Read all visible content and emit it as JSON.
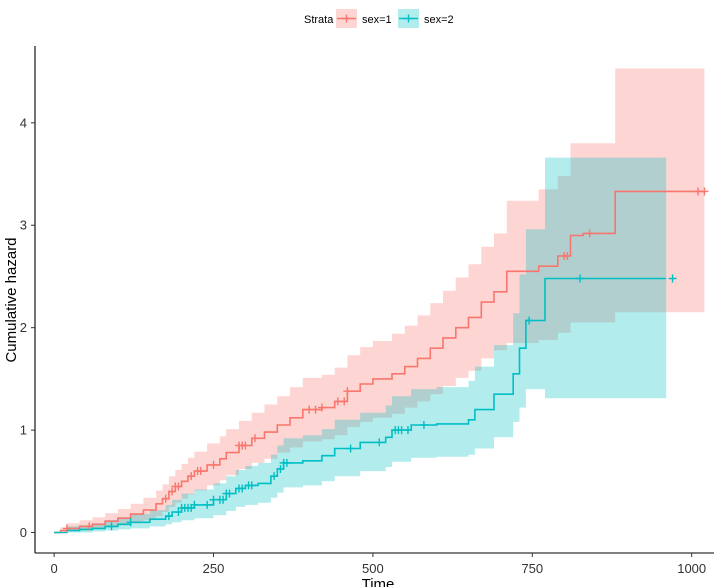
{
  "chart_data": {
    "type": "line",
    "title": "",
    "xlabel": "Time",
    "ylabel": "Cumulative hazard",
    "xlim": [
      -30,
      1035
    ],
    "ylim": [
      -0.2,
      4.75
    ],
    "x_ticks": [
      0,
      250,
      500,
      750,
      1000
    ],
    "y_ticks": [
      0,
      1,
      2,
      3,
      4
    ],
    "x_tick_labels": [
      "0",
      "250",
      "500",
      "750",
      "1000"
    ],
    "y_tick_labels": [
      "0",
      "1",
      "2",
      "3",
      "4"
    ],
    "grid": false,
    "legend": {
      "title": "Strata",
      "position": "top"
    },
    "series": [
      {
        "name": "sex=1",
        "color": "#F8766D",
        "steps": [
          [
            0,
            0.0
          ],
          [
            10,
            0.02
          ],
          [
            20,
            0.04
          ],
          [
            40,
            0.06
          ],
          [
            60,
            0.08
          ],
          [
            80,
            0.11
          ],
          [
            100,
            0.14
          ],
          [
            120,
            0.18
          ],
          [
            140,
            0.22
          ],
          [
            160,
            0.28
          ],
          [
            170,
            0.33
          ],
          [
            180,
            0.4
          ],
          [
            190,
            0.45
          ],
          [
            200,
            0.5
          ],
          [
            210,
            0.55
          ],
          [
            220,
            0.6
          ],
          [
            240,
            0.66
          ],
          [
            260,
            0.72
          ],
          [
            270,
            0.78
          ],
          [
            290,
            0.85
          ],
          [
            310,
            0.92
          ],
          [
            330,
            0.98
          ],
          [
            350,
            1.05
          ],
          [
            370,
            1.12
          ],
          [
            390,
            1.2
          ],
          [
            420,
            1.22
          ],
          [
            440,
            1.28
          ],
          [
            460,
            1.38
          ],
          [
            480,
            1.45
          ],
          [
            500,
            1.5
          ],
          [
            530,
            1.55
          ],
          [
            550,
            1.62
          ],
          [
            570,
            1.7
          ],
          [
            590,
            1.8
          ],
          [
            610,
            1.9
          ],
          [
            630,
            2.0
          ],
          [
            650,
            2.1
          ],
          [
            670,
            2.25
          ],
          [
            690,
            2.35
          ],
          [
            710,
            2.55
          ],
          [
            760,
            2.6
          ],
          [
            790,
            2.7
          ],
          [
            810,
            2.9
          ],
          [
            830,
            2.92
          ],
          [
            880,
            3.33
          ],
          [
            1020,
            3.33
          ]
        ],
        "ci_upper": [
          [
            0,
            0.0
          ],
          [
            10,
            0.05
          ],
          [
            20,
            0.09
          ],
          [
            40,
            0.12
          ],
          [
            60,
            0.15
          ],
          [
            80,
            0.19
          ],
          [
            100,
            0.23
          ],
          [
            120,
            0.28
          ],
          [
            140,
            0.34
          ],
          [
            160,
            0.41
          ],
          [
            170,
            0.47
          ],
          [
            180,
            0.55
          ],
          [
            190,
            0.61
          ],
          [
            200,
            0.67
          ],
          [
            210,
            0.73
          ],
          [
            220,
            0.79
          ],
          [
            240,
            0.87
          ],
          [
            260,
            0.94
          ],
          [
            270,
            1.01
          ],
          [
            290,
            1.09
          ],
          [
            310,
            1.17
          ],
          [
            330,
            1.25
          ],
          [
            350,
            1.33
          ],
          [
            370,
            1.42
          ],
          [
            390,
            1.51
          ],
          [
            420,
            1.54
          ],
          [
            440,
            1.61
          ],
          [
            460,
            1.73
          ],
          [
            480,
            1.81
          ],
          [
            500,
            1.87
          ],
          [
            530,
            1.94
          ],
          [
            550,
            2.02
          ],
          [
            570,
            2.12
          ],
          [
            590,
            2.24
          ],
          [
            610,
            2.36
          ],
          [
            630,
            2.49
          ],
          [
            650,
            2.62
          ],
          [
            670,
            2.79
          ],
          [
            690,
            2.92
          ],
          [
            710,
            3.24
          ],
          [
            760,
            3.35
          ],
          [
            790,
            3.48
          ],
          [
            810,
            3.8
          ],
          [
            830,
            3.8
          ],
          [
            880,
            4.53
          ],
          [
            1020,
            4.53
          ]
        ],
        "ci_lower": [
          [
            0,
            0.0
          ],
          [
            10,
            0.0
          ],
          [
            20,
            0.01
          ],
          [
            40,
            0.02
          ],
          [
            60,
            0.03
          ],
          [
            80,
            0.05
          ],
          [
            100,
            0.07
          ],
          [
            120,
            0.09
          ],
          [
            140,
            0.12
          ],
          [
            160,
            0.16
          ],
          [
            170,
            0.2
          ],
          [
            180,
            0.25
          ],
          [
            190,
            0.29
          ],
          [
            200,
            0.33
          ],
          [
            210,
            0.37
          ],
          [
            220,
            0.41
          ],
          [
            240,
            0.46
          ],
          [
            260,
            0.51
          ],
          [
            270,
            0.56
          ],
          [
            290,
            0.62
          ],
          [
            310,
            0.68
          ],
          [
            330,
            0.72
          ],
          [
            350,
            0.78
          ],
          [
            370,
            0.83
          ],
          [
            390,
            0.89
          ],
          [
            420,
            0.91
          ],
          [
            440,
            0.95
          ],
          [
            460,
            1.03
          ],
          [
            480,
            1.08
          ],
          [
            500,
            1.12
          ],
          [
            530,
            1.16
          ],
          [
            550,
            1.22
          ],
          [
            570,
            1.28
          ],
          [
            590,
            1.35
          ],
          [
            610,
            1.43
          ],
          [
            630,
            1.51
          ],
          [
            650,
            1.58
          ],
          [
            670,
            1.7
          ],
          [
            690,
            1.78
          ],
          [
            710,
            1.85
          ],
          [
            760,
            1.88
          ],
          [
            790,
            1.95
          ],
          [
            810,
            2.05
          ],
          [
            830,
            2.05
          ],
          [
            880,
            2.15
          ],
          [
            1020,
            2.15
          ]
        ],
        "censor_x": [
          20,
          55,
          175,
          185,
          190,
          195,
          215,
          225,
          230,
          250,
          290,
          295,
          300,
          315,
          400,
          410,
          420,
          445,
          455,
          460,
          800,
          805,
          840,
          1010,
          1020
        ]
      },
      {
        "name": "sex=2",
        "color": "#00BFC4",
        "steps": [
          [
            0,
            0.0
          ],
          [
            20,
            0.02
          ],
          [
            40,
            0.03
          ],
          [
            60,
            0.04
          ],
          [
            80,
            0.06
          ],
          [
            100,
            0.08
          ],
          [
            120,
            0.1
          ],
          [
            150,
            0.13
          ],
          [
            175,
            0.16
          ],
          [
            185,
            0.2
          ],
          [
            200,
            0.24
          ],
          [
            220,
            0.27
          ],
          [
            250,
            0.32
          ],
          [
            270,
            0.38
          ],
          [
            285,
            0.43
          ],
          [
            300,
            0.46
          ],
          [
            320,
            0.48
          ],
          [
            340,
            0.55
          ],
          [
            350,
            0.62
          ],
          [
            360,
            0.68
          ],
          [
            390,
            0.7
          ],
          [
            420,
            0.75
          ],
          [
            440,
            0.82
          ],
          [
            480,
            0.88
          ],
          [
            520,
            0.93
          ],
          [
            530,
            1.0
          ],
          [
            560,
            1.05
          ],
          [
            600,
            1.06
          ],
          [
            650,
            1.1
          ],
          [
            660,
            1.2
          ],
          [
            690,
            1.35
          ],
          [
            720,
            1.55
          ],
          [
            730,
            1.8
          ],
          [
            740,
            2.07
          ],
          [
            770,
            2.48
          ],
          [
            960,
            2.48
          ]
        ],
        "ci_upper": [
          [
            0,
            0.0
          ],
          [
            20,
            0.06
          ],
          [
            40,
            0.07
          ],
          [
            60,
            0.09
          ],
          [
            80,
            0.12
          ],
          [
            100,
            0.15
          ],
          [
            120,
            0.18
          ],
          [
            150,
            0.22
          ],
          [
            175,
            0.27
          ],
          [
            185,
            0.32
          ],
          [
            200,
            0.38
          ],
          [
            220,
            0.42
          ],
          [
            250,
            0.48
          ],
          [
            270,
            0.55
          ],
          [
            285,
            0.61
          ],
          [
            300,
            0.65
          ],
          [
            320,
            0.68
          ],
          [
            340,
            0.76
          ],
          [
            350,
            0.85
          ],
          [
            360,
            0.92
          ],
          [
            390,
            0.95
          ],
          [
            420,
            1.01
          ],
          [
            440,
            1.1
          ],
          [
            480,
            1.17
          ],
          [
            520,
            1.24
          ],
          [
            530,
            1.33
          ],
          [
            560,
            1.4
          ],
          [
            600,
            1.42
          ],
          [
            650,
            1.48
          ],
          [
            660,
            1.62
          ],
          [
            690,
            1.83
          ],
          [
            720,
            2.14
          ],
          [
            730,
            2.52
          ],
          [
            740,
            2.96
          ],
          [
            770,
            3.66
          ],
          [
            960,
            3.66
          ]
        ],
        "ci_lower": [
          [
            0,
            0.0
          ],
          [
            20,
            0.0
          ],
          [
            40,
            0.0
          ],
          [
            60,
            0.01
          ],
          [
            80,
            0.02
          ],
          [
            100,
            0.03
          ],
          [
            120,
            0.04
          ],
          [
            150,
            0.06
          ],
          [
            175,
            0.08
          ],
          [
            185,
            0.1
          ],
          [
            200,
            0.12
          ],
          [
            220,
            0.14
          ],
          [
            250,
            0.17
          ],
          [
            270,
            0.21
          ],
          [
            285,
            0.25
          ],
          [
            300,
            0.27
          ],
          [
            320,
            0.29
          ],
          [
            340,
            0.34
          ],
          [
            350,
            0.39
          ],
          [
            360,
            0.44
          ],
          [
            390,
            0.46
          ],
          [
            420,
            0.5
          ],
          [
            440,
            0.55
          ],
          [
            480,
            0.6
          ],
          [
            520,
            0.64
          ],
          [
            530,
            0.69
          ],
          [
            560,
            0.73
          ],
          [
            600,
            0.74
          ],
          [
            650,
            0.76
          ],
          [
            660,
            0.82
          ],
          [
            690,
            0.93
          ],
          [
            720,
            1.08
          ],
          [
            730,
            1.22
          ],
          [
            740,
            1.4
          ],
          [
            770,
            1.31
          ],
          [
            960,
            1.31
          ]
        ],
        "censor_x": [
          90,
          120,
          180,
          195,
          200,
          205,
          210,
          215,
          220,
          240,
          250,
          260,
          265,
          270,
          275,
          290,
          295,
          305,
          310,
          345,
          355,
          360,
          365,
          465,
          510,
          535,
          540,
          545,
          555,
          580,
          745,
          825,
          970
        ]
      }
    ]
  }
}
